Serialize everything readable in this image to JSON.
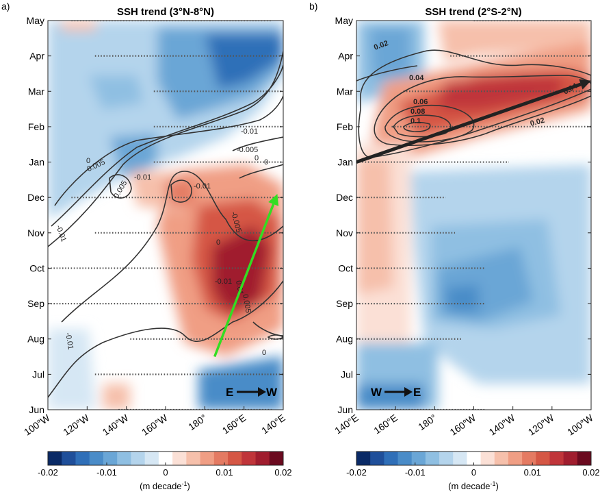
{
  "chart_data": [
    {
      "panel_label": "a)",
      "type": "heatmap",
      "title": "SSH trend (3°N-8°N)",
      "xlabel": "",
      "ylabel": "",
      "x_tick_labels": [
        "100°W",
        "120°W",
        "140°W",
        "160°W",
        "180°",
        "160°E",
        "140°E"
      ],
      "y_tick_labels": [
        "Jun",
        "Jul",
        "Aug",
        "Sep",
        "Oct",
        "Nov",
        "Dec",
        "Jan",
        "Feb",
        "Mar",
        "Apr",
        "May"
      ],
      "x_range_deg_west_of_dateline_east": [
        100,
        220
      ],
      "color_range": [
        -0.02,
        0.02
      ],
      "colorbar_ticks": [
        "-0.02",
        "-0.01",
        "0",
        "0.01",
        "0.02"
      ],
      "colorbar_unit_label": "(m decade",
      "colorbar_unit_exponent": "-1",
      "colorbar_unit_close": ")",
      "contour_labels": [
        "0",
        "-0.005",
        "-0.01",
        "0.005",
        "-0.01",
        "-0.005",
        "0",
        "-0.01",
        "-0.01",
        "-0.005",
        "0",
        "0.01",
        "0.005",
        "-0.01",
        "0",
        "-0.01",
        "0"
      ],
      "arrow_label_from": "E",
      "arrow_label_to": "W",
      "arrow_color": "#33dd22",
      "propagation_arrow": {
        "from": {
          "lon": 175,
          "month_index": 1.5
        },
        "to": {
          "lon": 143,
          "month_index": 6.1
        }
      }
    },
    {
      "panel_label": "b)",
      "type": "heatmap",
      "title": "SSH trend (2°S-2°N)",
      "xlabel": "",
      "ylabel": "",
      "x_tick_labels": [
        "140°E",
        "160°E",
        "180°",
        "160°W",
        "140°W",
        "120°W",
        "100°W"
      ],
      "y_tick_labels": [
        "Jun",
        "Jul",
        "Aug",
        "Sep",
        "Oct",
        "Nov",
        "Dec",
        "Jan",
        "Feb",
        "Mar",
        "Apr",
        "May"
      ],
      "color_range": [
        -0.02,
        0.02
      ],
      "colorbar_ticks": [
        "-0.02",
        "-0.01",
        "0",
        "0.01",
        "0.02"
      ],
      "colorbar_unit_label": "(m decade",
      "colorbar_unit_exponent": "-1",
      "colorbar_unit_close": ")",
      "contour_labels": [
        "0.02",
        "0.04",
        "0.06",
        "0.08",
        "0.1",
        "0.02",
        "0.04"
      ],
      "arrow_label_from": "W",
      "arrow_label_to": "E",
      "arrow_color": "#222222",
      "propagation_arrow": {
        "from": {
          "lon": 140,
          "month_index": 7.0
        },
        "to": {
          "lon": 260,
          "month_index": 9.3
        }
      }
    }
  ],
  "colors": {
    "cmap": [
      "#0a2a66",
      "#1f4f9a",
      "#2f6fb8",
      "#4a8cc8",
      "#6aa6d6",
      "#8fbfe2",
      "#b4d4ec",
      "#d6e7f4",
      "#ffffff",
      "#fbe0d6",
      "#f6c0ab",
      "#f09e84",
      "#e47a62",
      "#d55745",
      "#c0353a",
      "#a01d2e",
      "#6b0a1f"
    ],
    "contour": "#333333",
    "stipple": "#555555"
  }
}
